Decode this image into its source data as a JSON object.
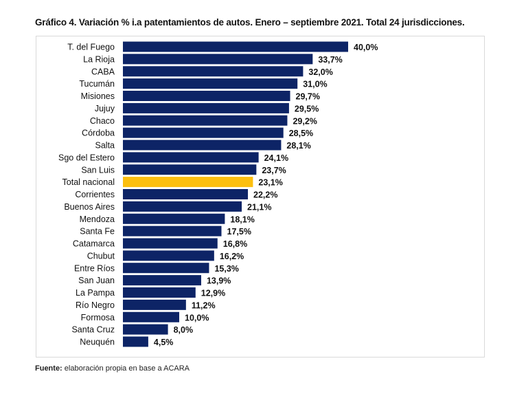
{
  "title": "Gráfico 4. Variación % i.a patentamientos de autos. Enero – septiembre 2021. Total 24 jurisdicciones.",
  "source": {
    "label": "Fuente:",
    "text": " elaboración propia en base a ACARA"
  },
  "chart_data": {
    "type": "bar",
    "orientation": "horizontal",
    "title": "Gráfico 4. Variación % i.a patentamientos de autos. Enero – septiembre 2021. Total 24 jurisdicciones.",
    "categories": [
      "T. del Fuego",
      "La Rioja",
      "CABA",
      "Tucumán",
      "Misiones",
      "Jujuy",
      "Chaco",
      "Córdoba",
      "Salta",
      "Sgo del Estero",
      "San Luis",
      "Total nacional",
      "Corrientes",
      "Buenos Aires",
      "Mendoza",
      "Santa Fe",
      "Catamarca",
      "Chubut",
      "Entre Ríos",
      "San Juan",
      "La Pampa",
      "Río Negro",
      "Formosa",
      "Santa Cruz",
      "Neuquén"
    ],
    "values": [
      40.0,
      33.7,
      32.0,
      31.0,
      29.7,
      29.5,
      29.2,
      28.5,
      28.1,
      24.1,
      23.7,
      23.1,
      22.2,
      21.1,
      18.1,
      17.5,
      16.8,
      16.2,
      15.3,
      13.9,
      12.9,
      11.2,
      10.0,
      8.0,
      4.5
    ],
    "labels": [
      "40,0%",
      "33,7%",
      "32,0%",
      "31,0%",
      "29,7%",
      "29,5%",
      "29,2%",
      "28,5%",
      "28,1%",
      "24,1%",
      "23,7%",
      "23,1%",
      "22,2%",
      "21,1%",
      "18,1%",
      "17,5%",
      "16,8%",
      "16,2%",
      "15,3%",
      "13,9%",
      "12,9%",
      "11,2%",
      "10,0%",
      "8,0%",
      "4,5%"
    ],
    "highlight": "Total nacional",
    "colors": {
      "bar": "#0d2466",
      "highlight": "#fcbf0f"
    },
    "xlim": [
      0,
      40
    ],
    "grid": false,
    "legend": "none"
  }
}
